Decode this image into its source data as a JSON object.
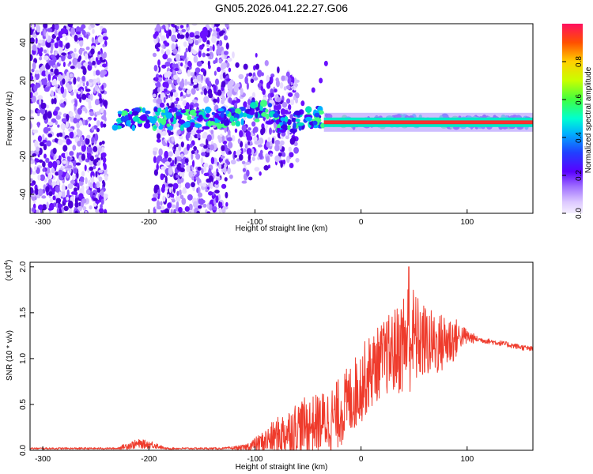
{
  "title": "GN05.2026.041.22.27.G06",
  "chart_data": [
    {
      "type": "heatmap",
      "name": "spectrogram",
      "xlabel": "Height of straight line (km)",
      "ylabel": "Frequency (Hz)",
      "xlim": [
        -312,
        162
      ],
      "ylim": [
        -50,
        50
      ],
      "xticks": [
        -300,
        -200,
        -100,
        0,
        100
      ],
      "yticks": [
        -40,
        -20,
        0,
        20,
        40
      ],
      "colorbar": {
        "label": "Normalized spectral amplitude",
        "range": [
          0,
          1
        ],
        "ticks": [
          "0.0",
          "0.2",
          "0.4",
          "0.6",
          "0.8"
        ]
      },
      "noise_bands": [
        [
          -312,
          -240
        ],
        [
          -195,
          -125
        ],
        [
          -125,
          -60
        ]
      ],
      "signal_trace": [
        [
          -230,
          0
        ],
        [
          -200,
          0
        ],
        [
          -125,
          0
        ],
        [
          -110,
          3
        ],
        [
          -90,
          4
        ],
        [
          -75,
          -3
        ],
        [
          -65,
          -2
        ],
        [
          -40,
          1
        ],
        [
          -30,
          -2
        ],
        [
          0,
          -2
        ],
        [
          50,
          -1
        ],
        [
          100,
          -2
        ],
        [
          162,
          -2
        ]
      ],
      "drift_branch": [
        [
          -55,
          8
        ],
        [
          -45,
          15
        ],
        [
          -38,
          20
        ],
        [
          -33,
          29
        ]
      ],
      "strong_segment": [
        -35,
        162
      ]
    },
    {
      "type": "line",
      "name": "snr",
      "xlabel": "Height of straight line (km)",
      "ylabel": "SNR (10 * v/v)",
      "multiplier": "(x10",
      "multiplier_exp": "4",
      "multiplier_close": ")",
      "xlim": [
        -312,
        162
      ],
      "ylim": [
        0,
        2.05
      ],
      "xticks": [
        -300,
        -200,
        -100,
        0,
        100
      ],
      "yticks": [
        "0.0",
        "0.5",
        "1.0",
        "1.5",
        "2.0"
      ],
      "color": "#ef3b2c",
      "envelope": {
        "x": [
          -312,
          -230,
          -220,
          -210,
          -195,
          -185,
          -130,
          -110,
          -95,
          -80,
          -60,
          -40,
          -25,
          -10,
          5,
          20,
          35,
          45,
          55,
          70,
          85,
          95,
          110,
          130,
          162
        ],
        "mid": [
          0.02,
          0.02,
          0.05,
          0.07,
          0.06,
          0.02,
          0.02,
          0.03,
          0.08,
          0.15,
          0.25,
          0.3,
          0.35,
          0.55,
          0.8,
          1.0,
          1.1,
          1.25,
          1.2,
          1.15,
          1.2,
          1.25,
          1.21,
          1.17,
          1.1
        ],
        "amp": [
          0.01,
          0.01,
          0.04,
          0.05,
          0.04,
          0.01,
          0.01,
          0.03,
          0.1,
          0.2,
          0.3,
          0.32,
          0.38,
          0.4,
          0.42,
          0.4,
          0.5,
          0.65,
          0.45,
          0.35,
          0.3,
          0.12,
          0.03,
          0.03,
          0.03
        ]
      },
      "peak": [
        45,
        2.0
      ]
    }
  ]
}
